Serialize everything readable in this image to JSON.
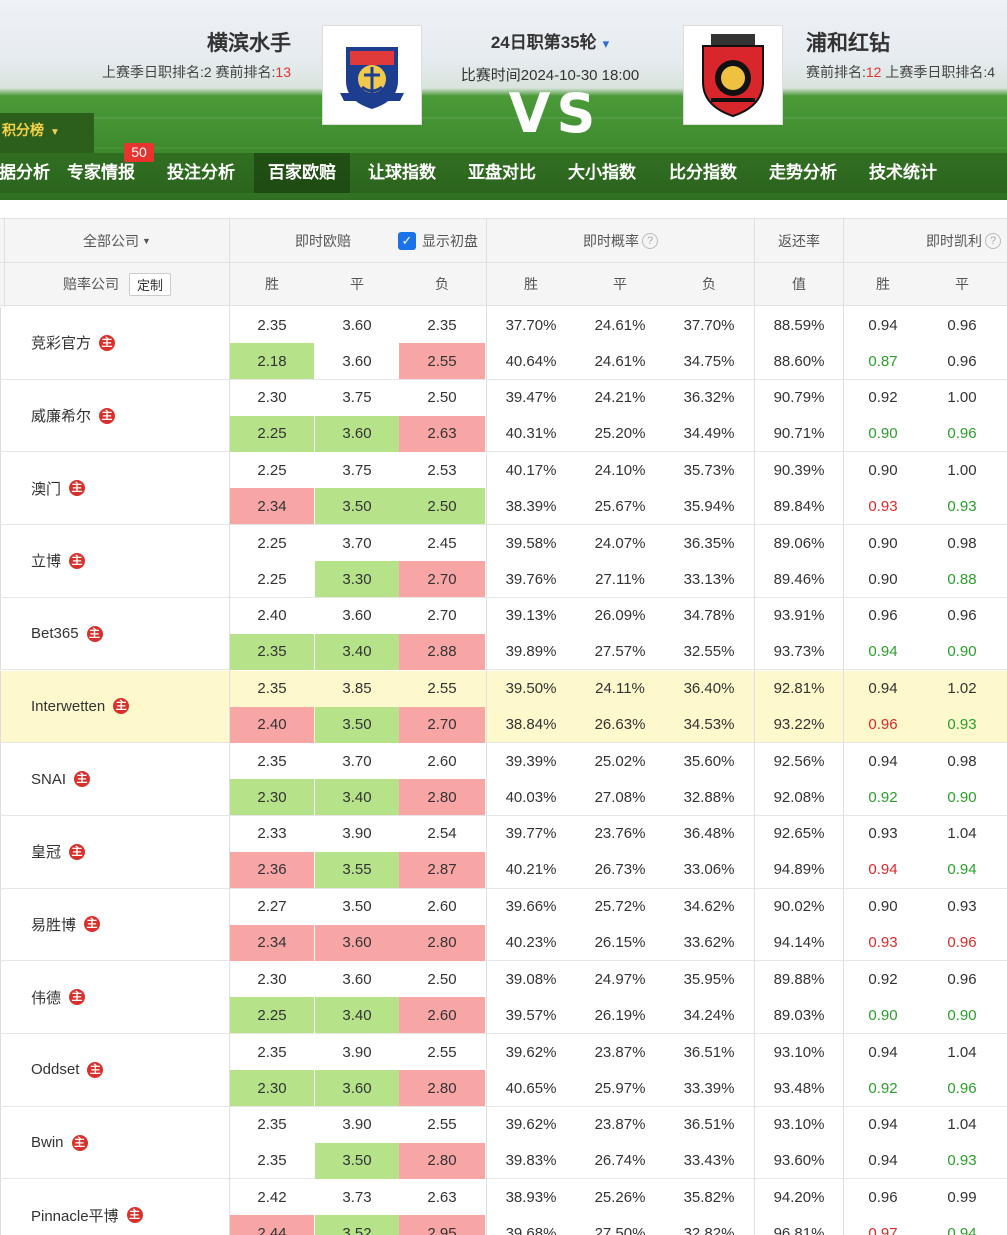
{
  "match": {
    "home_name": "横滨水手",
    "home_rank_prefix": "上赛季日职排名:2  赛前排名:",
    "home_rank": "13",
    "away_name": "浦和红钻",
    "away_rank_prefix": "赛前排名:",
    "away_rank": "12",
    "away_rank_suffix": "  上赛季日职排名:4",
    "round": "24日职第35轮",
    "time": "比赛时间2024-10-30 18:00",
    "vs": "VS"
  },
  "standing_tab": "积分榜",
  "nav": {
    "items": [
      "数据分析",
      "专家情报",
      "投注分析",
      "百家欧赔",
      "让球指数",
      "亚盘对比",
      "大小指数",
      "比分指数",
      "走势分析",
      "技术统计"
    ],
    "badge": "50",
    "active": "百家欧赔"
  },
  "table": {
    "company_filter": "全部公司",
    "live_odds": "即时欧赔",
    "show_initial": "显示初盘",
    "live_prob": "即时概率",
    "return_rate": "返还率",
    "live_kelly": "即时凯利",
    "odds_company": "赔率公司",
    "custom": "定制",
    "sub_headers": [
      "胜",
      "平",
      "负",
      "胜",
      "平",
      "负",
      "值",
      "胜",
      "平"
    ],
    "zhu_label": "主"
  },
  "rows": [
    {
      "name": "竞彩官方",
      "init": [
        "2.35",
        "3.60",
        "2.35",
        "37.70%",
        "24.61%",
        "37.70%",
        "88.59%",
        "0.94",
        "0.96"
      ],
      "live": [
        "2.18",
        "3.60",
        "2.55",
        "40.64%",
        "24.61%",
        "34.75%",
        "88.60%",
        "0.87",
        "0.96"
      ],
      "bg": [
        "g",
        "",
        "r"
      ],
      "tc": [
        "tg",
        ""
      ]
    },
    {
      "name": "威廉希尔",
      "init": [
        "2.30",
        "3.75",
        "2.50",
        "39.47%",
        "24.21%",
        "36.32%",
        "90.79%",
        "0.92",
        "1.00"
      ],
      "live": [
        "2.25",
        "3.60",
        "2.63",
        "40.31%",
        "25.20%",
        "34.49%",
        "90.71%",
        "0.90",
        "0.96"
      ],
      "bg": [
        "g",
        "g",
        "r"
      ],
      "tc": [
        "tg",
        "tg"
      ]
    },
    {
      "name": "澳门",
      "init": [
        "2.25",
        "3.75",
        "2.53",
        "40.17%",
        "24.10%",
        "35.73%",
        "90.39%",
        "0.90",
        "1.00"
      ],
      "live": [
        "2.34",
        "3.50",
        "2.50",
        "38.39%",
        "25.67%",
        "35.94%",
        "89.84%",
        "0.93",
        "0.93"
      ],
      "bg": [
        "r",
        "g",
        "g"
      ],
      "tc": [
        "tr",
        "tg"
      ]
    },
    {
      "name": "立博",
      "init": [
        "2.25",
        "3.70",
        "2.45",
        "39.58%",
        "24.07%",
        "36.35%",
        "89.06%",
        "0.90",
        "0.98"
      ],
      "live": [
        "2.25",
        "3.30",
        "2.70",
        "39.76%",
        "27.11%",
        "33.13%",
        "89.46%",
        "0.90",
        "0.88"
      ],
      "bg": [
        "",
        "g",
        "r"
      ],
      "tc": [
        "",
        "tg"
      ]
    },
    {
      "name": "Bet365",
      "init": [
        "2.40",
        "3.60",
        "2.70",
        "39.13%",
        "26.09%",
        "34.78%",
        "93.91%",
        "0.96",
        "0.96"
      ],
      "live": [
        "2.35",
        "3.40",
        "2.88",
        "39.89%",
        "27.57%",
        "32.55%",
        "93.73%",
        "0.94",
        "0.90"
      ],
      "bg": [
        "g",
        "g",
        "r"
      ],
      "tc": [
        "tg",
        "tg"
      ]
    },
    {
      "name": "Interwetten",
      "hl": true,
      "init": [
        "2.35",
        "3.85",
        "2.55",
        "39.50%",
        "24.11%",
        "36.40%",
        "92.81%",
        "0.94",
        "1.02"
      ],
      "live": [
        "2.40",
        "3.50",
        "2.70",
        "38.84%",
        "26.63%",
        "34.53%",
        "93.22%",
        "0.96",
        "0.93"
      ],
      "bg": [
        "r",
        "g",
        "r"
      ],
      "tc": [
        "tr",
        "tg"
      ]
    },
    {
      "name": "SNAI",
      "init": [
        "2.35",
        "3.70",
        "2.60",
        "39.39%",
        "25.02%",
        "35.60%",
        "92.56%",
        "0.94",
        "0.98"
      ],
      "live": [
        "2.30",
        "3.40",
        "2.80",
        "40.03%",
        "27.08%",
        "32.88%",
        "92.08%",
        "0.92",
        "0.90"
      ],
      "bg": [
        "g",
        "g",
        "r"
      ],
      "tc": [
        "tg",
        "tg"
      ]
    },
    {
      "name": "皇冠",
      "init": [
        "2.33",
        "3.90",
        "2.54",
        "39.77%",
        "23.76%",
        "36.48%",
        "92.65%",
        "0.93",
        "1.04"
      ],
      "live": [
        "2.36",
        "3.55",
        "2.87",
        "40.21%",
        "26.73%",
        "33.06%",
        "94.89%",
        "0.94",
        "0.94"
      ],
      "bg": [
        "r",
        "g",
        "r"
      ],
      "tc": [
        "tr",
        "tg"
      ]
    },
    {
      "name": "易胜博",
      "init": [
        "2.27",
        "3.50",
        "2.60",
        "39.66%",
        "25.72%",
        "34.62%",
        "90.02%",
        "0.90",
        "0.93"
      ],
      "live": [
        "2.34",
        "3.60",
        "2.80",
        "40.23%",
        "26.15%",
        "33.62%",
        "94.14%",
        "0.93",
        "0.96"
      ],
      "bg": [
        "r",
        "r",
        "r"
      ],
      "tc": [
        "tr",
        "tr"
      ]
    },
    {
      "name": "伟德",
      "init": [
        "2.30",
        "3.60",
        "2.50",
        "39.08%",
        "24.97%",
        "35.95%",
        "89.88%",
        "0.92",
        "0.96"
      ],
      "live": [
        "2.25",
        "3.40",
        "2.60",
        "39.57%",
        "26.19%",
        "34.24%",
        "89.03%",
        "0.90",
        "0.90"
      ],
      "bg": [
        "g",
        "g",
        "r"
      ],
      "tc": [
        "tg",
        "tg"
      ]
    },
    {
      "name": "Oddset",
      "init": [
        "2.35",
        "3.90",
        "2.55",
        "39.62%",
        "23.87%",
        "36.51%",
        "93.10%",
        "0.94",
        "1.04"
      ],
      "live": [
        "2.30",
        "3.60",
        "2.80",
        "40.65%",
        "25.97%",
        "33.39%",
        "93.48%",
        "0.92",
        "0.96"
      ],
      "bg": [
        "g",
        "g",
        "r"
      ],
      "tc": [
        "tg",
        "tg"
      ]
    },
    {
      "name": "Bwin",
      "init": [
        "2.35",
        "3.90",
        "2.55",
        "39.62%",
        "23.87%",
        "36.51%",
        "93.10%",
        "0.94",
        "1.04"
      ],
      "live": [
        "2.35",
        "3.50",
        "2.80",
        "39.83%",
        "26.74%",
        "33.43%",
        "93.60%",
        "0.94",
        "0.93"
      ],
      "bg": [
        "",
        "g",
        "r"
      ],
      "tc": [
        "",
        "tg"
      ]
    },
    {
      "name": "Pinnacle平博",
      "init": [
        "2.42",
        "3.73",
        "2.63",
        "38.93%",
        "25.26%",
        "35.82%",
        "94.20%",
        "0.96",
        "0.99"
      ],
      "live": [
        "2.44",
        "3.52",
        "2.95",
        "39.68%",
        "27.50%",
        "32.82%",
        "96.81%",
        "0.97",
        "0.94"
      ],
      "bg": [
        "r",
        "g",
        "r"
      ],
      "tc": [
        "tr",
        "tg"
      ]
    }
  ]
}
